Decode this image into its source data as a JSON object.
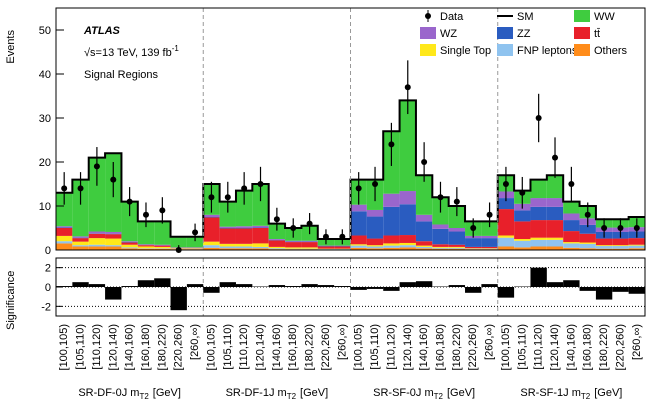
{
  "chart_data": [
    {
      "type": "bar",
      "stacked": true,
      "ylabel": "Events",
      "ylim": [
        0,
        55
      ],
      "yticks": [
        0,
        10,
        20,
        30,
        40,
        50
      ],
      "annotations": {
        "experiment": "ATLAS",
        "energy": "√s=13 TeV, 139 fb",
        "energy_sup": "-1",
        "region": "Signal Regions"
      },
      "regions": [
        {
          "label": "SR-DF-0J m",
          "sub": "T2",
          "unit": "[GeV]"
        },
        {
          "label": "SR-DF-1J m",
          "sub": "T2",
          "unit": "[GeV]"
        },
        {
          "label": "SR-SF-0J m",
          "sub": "T2",
          "unit": "[GeV]"
        },
        {
          "label": "SR-SF-1J m",
          "sub": "T2",
          "unit": "[GeV]"
        }
      ],
      "categories": [
        "[100,105)",
        "[105,110)",
        "[110,120)",
        "[120,140)",
        "[140,160)",
        "[160,180)",
        "[180,220)",
        "[220,260)",
        "[260,∞)",
        "[100,105)",
        "[105,110)",
        "[110,120)",
        "[120,140)",
        "[140,160)",
        "[160,180)",
        "[180,220)",
        "[220,260)",
        "[260,∞)",
        "[100,105)",
        "[105,110)",
        "[110,120)",
        "[120,140)",
        "[140,160)",
        "[160,180)",
        "[180,220)",
        "[220,260)",
        "[260,∞)",
        "[100,105)",
        "[105,110)",
        "[110,120)",
        "[120,140)",
        "[140,160)",
        "[160,180)",
        "[180,220)",
        "[220,260)",
        "[260,∞)"
      ],
      "data": {
        "name": "Data",
        "color": "#000000",
        "values": [
          14,
          14,
          19,
          16,
          11,
          8,
          9,
          0,
          4,
          12,
          12,
          14,
          15,
          7,
          5,
          6,
          3,
          3,
          14,
          15,
          24,
          37,
          20,
          12,
          11,
          5,
          8,
          15,
          13,
          30,
          21,
          15,
          8,
          5,
          5,
          5
        ],
        "errors": [
          3.7,
          3.7,
          4.4,
          4.0,
          3.3,
          2.8,
          3.0,
          1.1,
          2.0,
          3.5,
          3.5,
          3.7,
          3.9,
          2.6,
          2.2,
          2.4,
          1.7,
          1.7,
          3.7,
          3.9,
          4.9,
          6.1,
          4.5,
          3.5,
          3.3,
          2.2,
          2.8,
          3.9,
          3.6,
          5.5,
          4.6,
          3.9,
          2.8,
          2.2,
          2.2,
          2.2
        ]
      },
      "total": {
        "name": "SM",
        "color": "#000000"
      },
      "series": [
        {
          "name": "WW",
          "color": "#3fcc3f",
          "values": [
            7.6,
            12.9,
            16.8,
            17.9,
            9.0,
            5.2,
            5.3,
            2.4,
            2.4,
            7.0,
            5.7,
            8.1,
            9.5,
            3.5,
            2.9,
            3.4,
            1.5,
            1.5,
            5.7,
            6.9,
            14.2,
            20.6,
            9.0,
            6.2,
            5.0,
            3.3,
            3.3,
            3.7,
            3.0,
            4.2,
            5.2,
            2.7,
            2.8,
            1.9,
            1.9,
            2.3
          ]
        },
        {
          "name": "WZ",
          "color": "#9a66cc",
          "values": [
            0.3,
            0.3,
            0.4,
            0.4,
            0.2,
            0.2,
            0.2,
            0.1,
            0.1,
            0.5,
            0.3,
            0.4,
            0.4,
            0.2,
            0.2,
            0.2,
            0.1,
            0.1,
            1.5,
            1.5,
            3.0,
            3.0,
            1.5,
            1.0,
            0.8,
            0.5,
            0.5,
            1.5,
            1.5,
            2.0,
            2.0,
            1.5,
            1.5,
            1.0,
            1.0,
            1.0
          ]
        },
        {
          "name": "ZZ",
          "color": "#2a5cc0",
          "values": [
            0.1,
            0.1,
            0.1,
            0.1,
            0.1,
            0,
            0,
            0,
            0,
            0.1,
            0.1,
            0.1,
            0.1,
            0.1,
            0.1,
            0.1,
            0.1,
            0.1,
            5.5,
            5.0,
            6.5,
            7.0,
            4.5,
            3.5,
            3.0,
            2.0,
            2.0,
            2.5,
            2.5,
            3.0,
            3.0,
            2.5,
            2.0,
            1.5,
            1.5,
            1.5
          ]
        },
        {
          "name": "tt̄",
          "color": "#e8202a",
          "values": [
            1.8,
            0.8,
            1.0,
            1.0,
            0.5,
            0.3,
            0.3,
            0.1,
            0.1,
            5.5,
            3.5,
            3.5,
            3.5,
            1.5,
            1.2,
            1.2,
            0.5,
            0.5,
            2.0,
            1.5,
            1.8,
            1.8,
            1.0,
            0.6,
            0.5,
            0.3,
            0.3,
            6.0,
            4.0,
            4.0,
            4.0,
            2.5,
            2.0,
            1.5,
            1.5,
            1.5
          ]
        },
        {
          "name": "Single Top",
          "color": "#ffe81a",
          "values": [
            1.2,
            0.8,
            1.5,
            1.5,
            0.6,
            0.4,
            0.3,
            0.1,
            0.1,
            0.8,
            0.6,
            0.6,
            0.8,
            0.3,
            0.3,
            0.3,
            0.1,
            0.1,
            0.3,
            0.3,
            0.5,
            0.5,
            0.3,
            0.2,
            0.2,
            0.1,
            0.1,
            0.5,
            0.4,
            0.5,
            0.5,
            0.3,
            0.3,
            0.2,
            0.2,
            0.2
          ]
        },
        {
          "name": "FNP leptons",
          "color": "#8fc3ef",
          "values": [
            0.5,
            0.3,
            0.4,
            0.3,
            0.2,
            0.1,
            0.1,
            0.1,
            0.1,
            0.6,
            0.4,
            0.4,
            0.3,
            0.2,
            0.1,
            0.1,
            0.1,
            0.1,
            0.5,
            0.4,
            0.5,
            0.5,
            0.3,
            0.2,
            0.2,
            0.1,
            0.1,
            2.0,
            1.5,
            1.5,
            1.5,
            1.0,
            1.0,
            0.6,
            0.6,
            0.6
          ]
        },
        {
          "name": "Others",
          "color": "#ff8c1a",
          "values": [
            1.5,
            0.8,
            0.8,
            0.8,
            0.4,
            0.3,
            0.3,
            0.2,
            0.2,
            0.5,
            0.4,
            0.4,
            0.4,
            0.2,
            0.2,
            0.2,
            0.1,
            0.1,
            0.5,
            0.4,
            0.5,
            0.6,
            0.4,
            0.3,
            0.3,
            0.2,
            0.2,
            0.8,
            0.6,
            0.8,
            0.8,
            0.5,
            0.4,
            0.3,
            0.3,
            0.4
          ]
        }
      ]
    },
    {
      "type": "bar",
      "ylabel": "Significance",
      "color": "#000000",
      "grid": true,
      "ylim": [
        -3,
        3
      ],
      "yticks": [
        -2,
        0,
        2
      ],
      "values": [
        0.1,
        0.5,
        0.3,
        -1.3,
        0.1,
        0.7,
        0.9,
        -2.4,
        0.3,
        -0.6,
        0.5,
        0.3,
        0.05,
        0.2,
        0.1,
        0.3,
        0.2,
        0.1,
        -0.3,
        -0.2,
        -0.4,
        0.5,
        0.6,
        0.05,
        0.2,
        -0.6,
        0.3,
        -1.1,
        0.05,
        2.0,
        0.5,
        0.7,
        -0.4,
        -1.3,
        -0.5,
        -0.7
      ]
    }
  ]
}
